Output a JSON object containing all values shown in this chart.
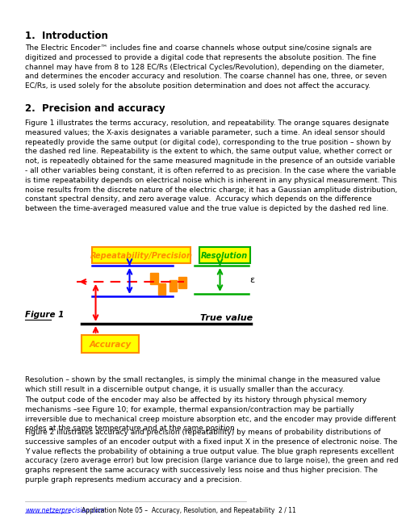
{
  "title": "1.  Introduction",
  "section2": "2.  Precision and accuracy",
  "intro_text": "The Electric Encoder™ includes fine and coarse channels whose output sine/cosine signals are\ndigitized and processed to provide a digital code that represents the absolute position. The fine\nchannel may have from 8 to 128 EC/Rs (Electrical Cycles/Revolution), depending on the diameter,\nand determines the encoder accuracy and resolution. The coarse channel has one, three, or seven\nEC/Rs, is used solely for the absolute position determination and does not affect the accuracy.",
  "para2_text": "Figure 1 illustrates the terms accuracy, resolution, and repeatability. The orange squares designate\nmeasured values; the X-axis designates a variable parameter, such a time. An ideal sensor should\nrepeatedly provide the same output (or digital code), corresponding to the true position – shown by\nthe dashed red line. Repeatability is the extent to which, the same output value, whether correct or\nnot, is repeatedly obtained for the same measured magnitude in the presence of an outside variable\n- all other variables being constant, it is often referred to as precision. In the case where the variable\nis time repeatability depends on electrical noise which is inherent in any physical measurement. This\nnoise results from the discrete nature of the electric charge; it has a Gaussian amplitude distribution,\nconstant spectral density, and zero average value.  Accuracy which depends on the difference\nbetween the time-averaged measured value and the true value is depicted by the dashed red line.",
  "figure_label": "Figure 1",
  "true_value_label": "True value",
  "repeatability_label": "Repeatability/Precision",
  "resolution_label": "Resolution",
  "accuracy_label": "Accuracy",
  "epsilon_label": "ε",
  "resolution_para": "Resolution – shown by the small rectangles, is simply the minimal change in the measured value\nwhich still result in a discernible output change, it is usually smaller than the accuracy.",
  "output_code_para": "The output code of the encoder may also be affected by its history through physical memory\nmechanisms –see Figure 10; for example, thermal expansion/contraction may be partially\nirreversible due to mechanical creep moisture absorption etc, and the encoder may provide different\ncodes at the same temperature and at the same position",
  "figure2_para": "Figure 2 illustrates accuracy and precision (repeatability) by means of probability distributions of\nsuccessive samples of an encoder output with a fixed input X in the presence of electronic noise. The\nY value reflects the probability of obtaining a true output value. The blue graph represents excellent\naccuracy (zero average error) but low precision (large variance due to large noise), the green and red\ngraphs represent the same accuracy with successively less noise and thus higher precision. The\npurple graph represents medium accuracy and a precision.",
  "footer_url": "www.netzerprecision.com",
  "footer_text": "Application Note 05 –  Accuracy, Resolution, and Repeatability  2 / 11",
  "bg_color": "#ffffff",
  "text_color": "#000000",
  "yellow_fill": "#ffff00",
  "orange_color": "#ff8c00",
  "green_color": "#00aa00",
  "blue_color": "#0000ff",
  "red_color": "#ff0000",
  "black_color": "#000000"
}
